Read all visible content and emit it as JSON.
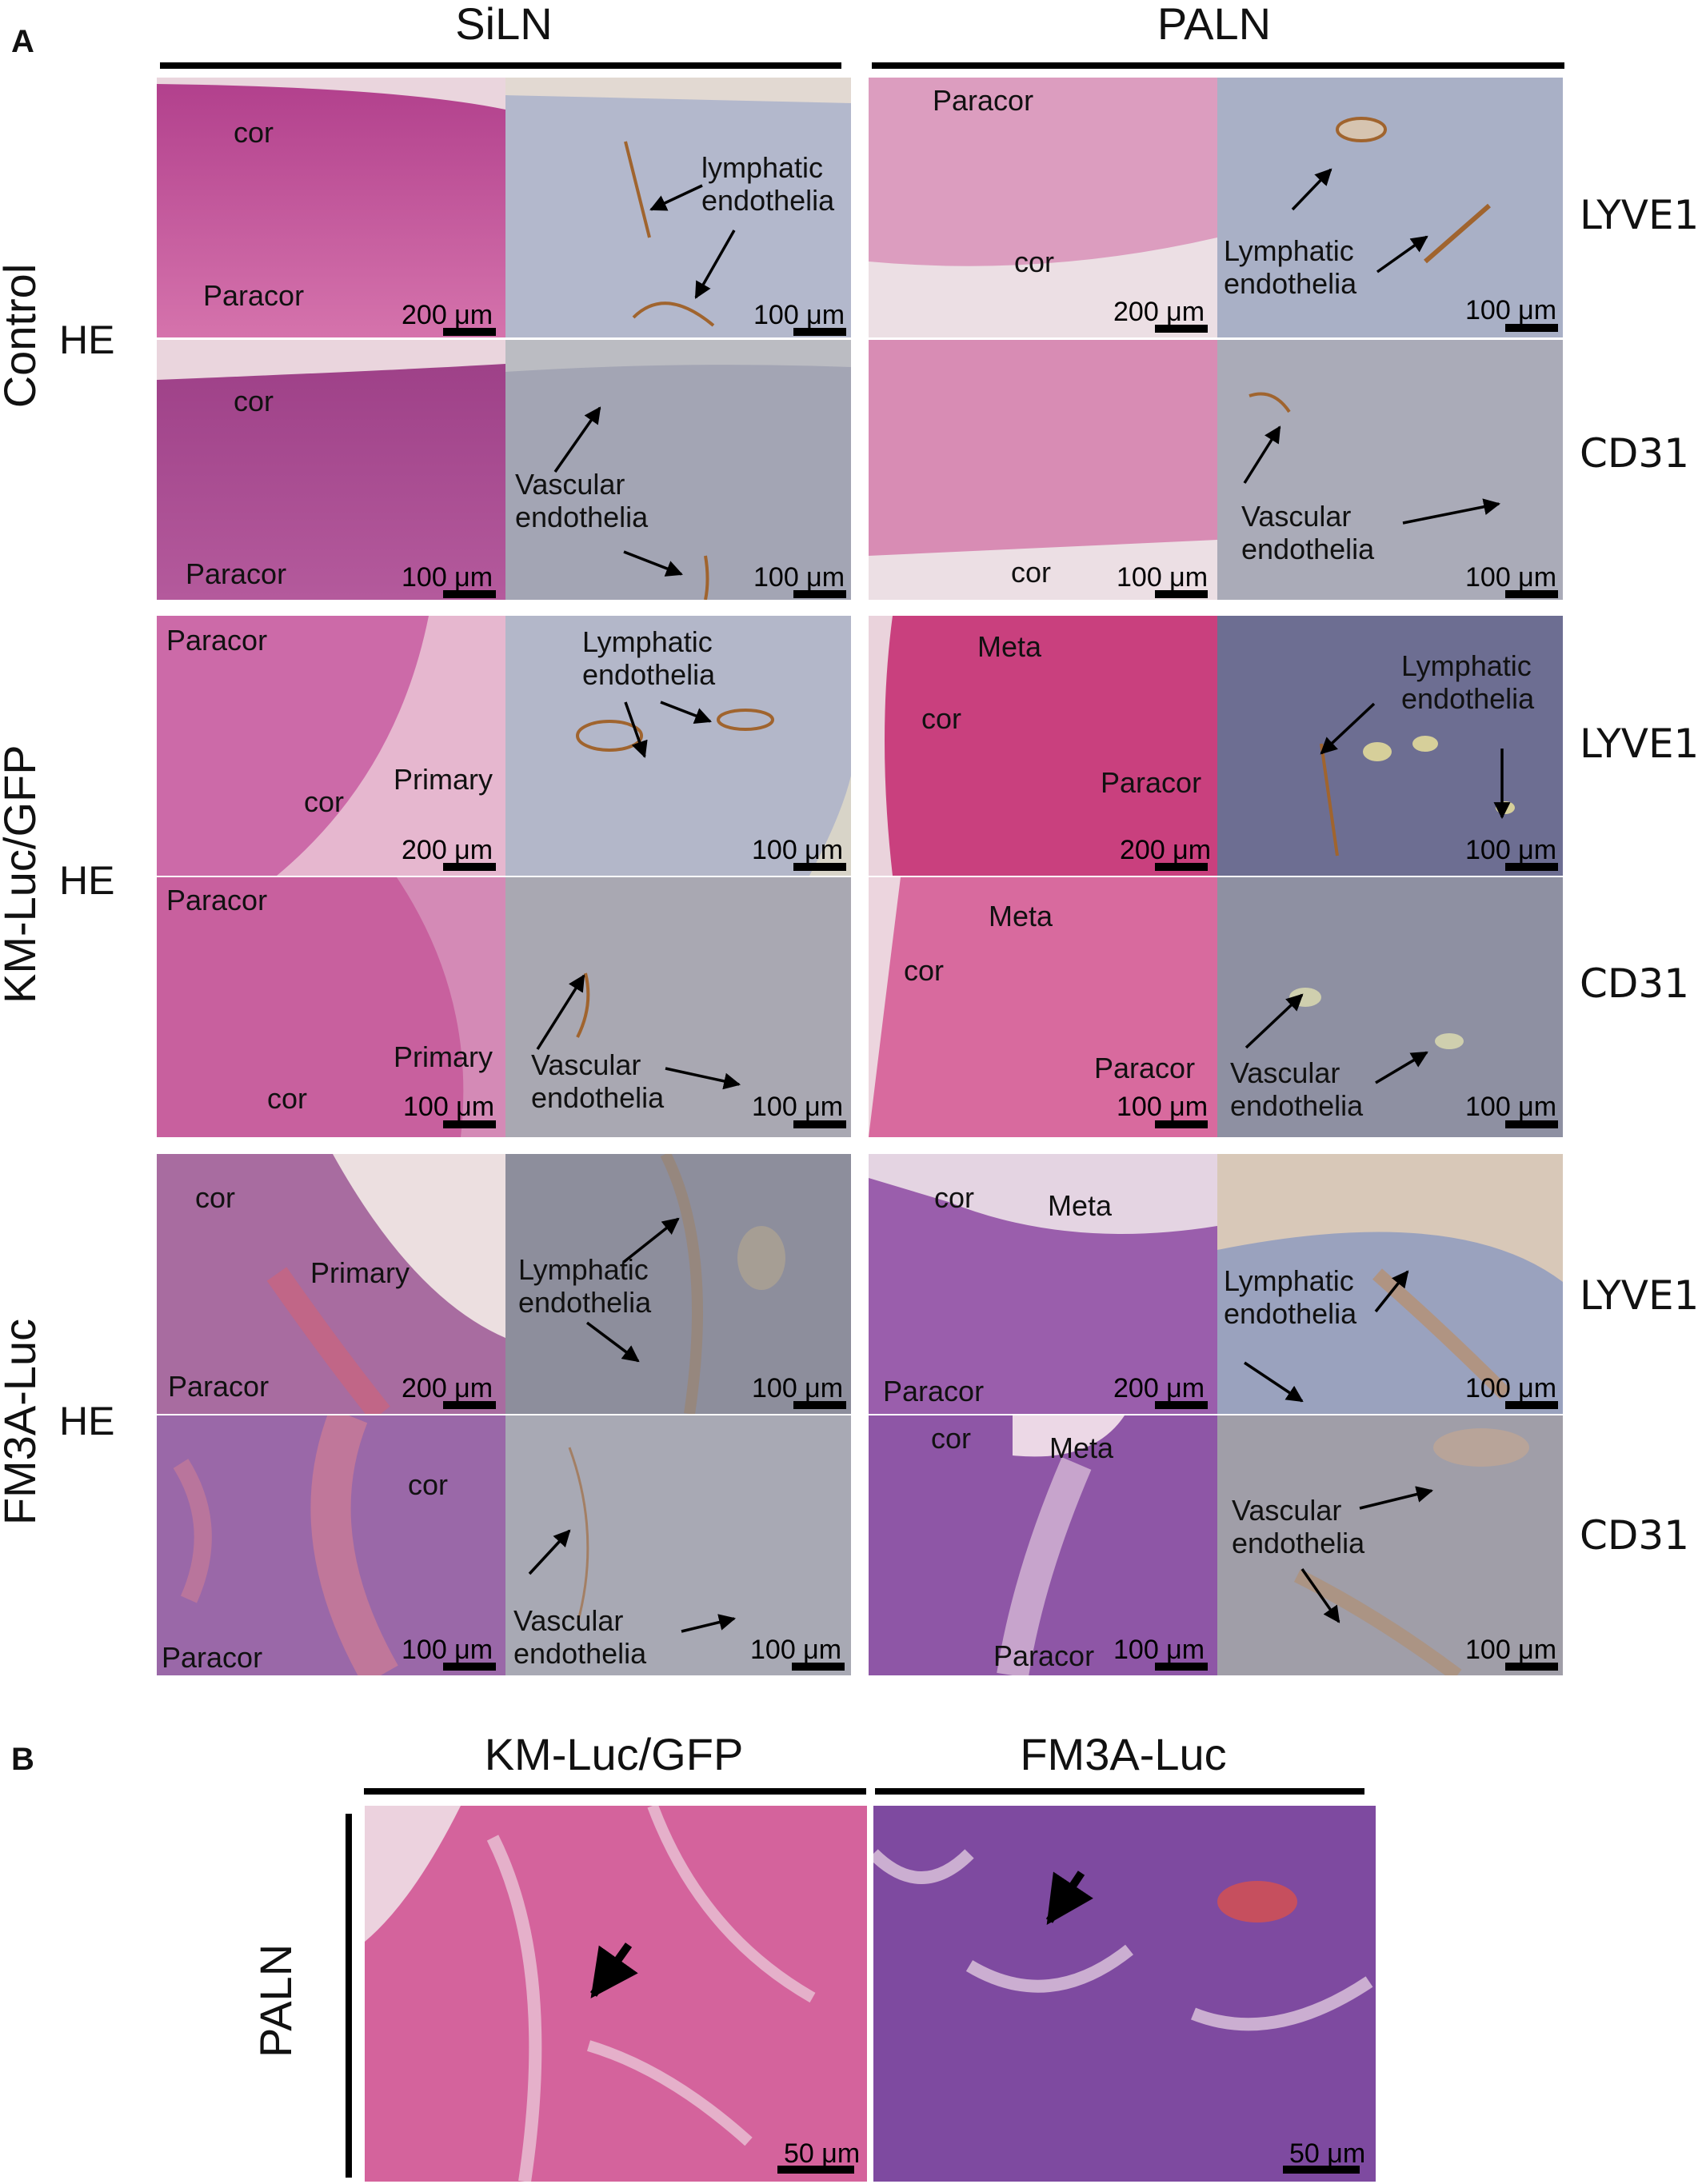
{
  "panels": {
    "a": "A",
    "b": "B"
  },
  "columns": {
    "siln": "SiLN",
    "paln": "PALN"
  },
  "rows": {
    "control": "Control",
    "kmluc": "KM-Luc/GFP",
    "fm3a": "FM3A-Luc",
    "he": "HE"
  },
  "stains": {
    "lyve1": "LYVE1",
    "cd31": "CD31"
  },
  "scale": {
    "um200": "200 μm",
    "um100": "100 μm",
    "um50": "50 μm"
  },
  "labels": {
    "cor": "cor",
    "paracor": "Paracor",
    "primary": "Primary",
    "meta": "Meta",
    "lymphatic_lower": "lymphatic\nendothelia",
    "lymphatic": "Lymphatic\nendothelia",
    "vascular": "Vascular\nendothelia"
  },
  "panel_b": {
    "km": "KM-Luc/GFP",
    "fm3a": "FM3A-Luc",
    "paln": "PALN"
  },
  "colors": {
    "he_pink": "#cc5a9a",
    "he_purple": "#9a5aa8",
    "ihc_blue": "#a7acc4",
    "ihc_dark": "#8c90a8",
    "brown": "#a0642e"
  }
}
